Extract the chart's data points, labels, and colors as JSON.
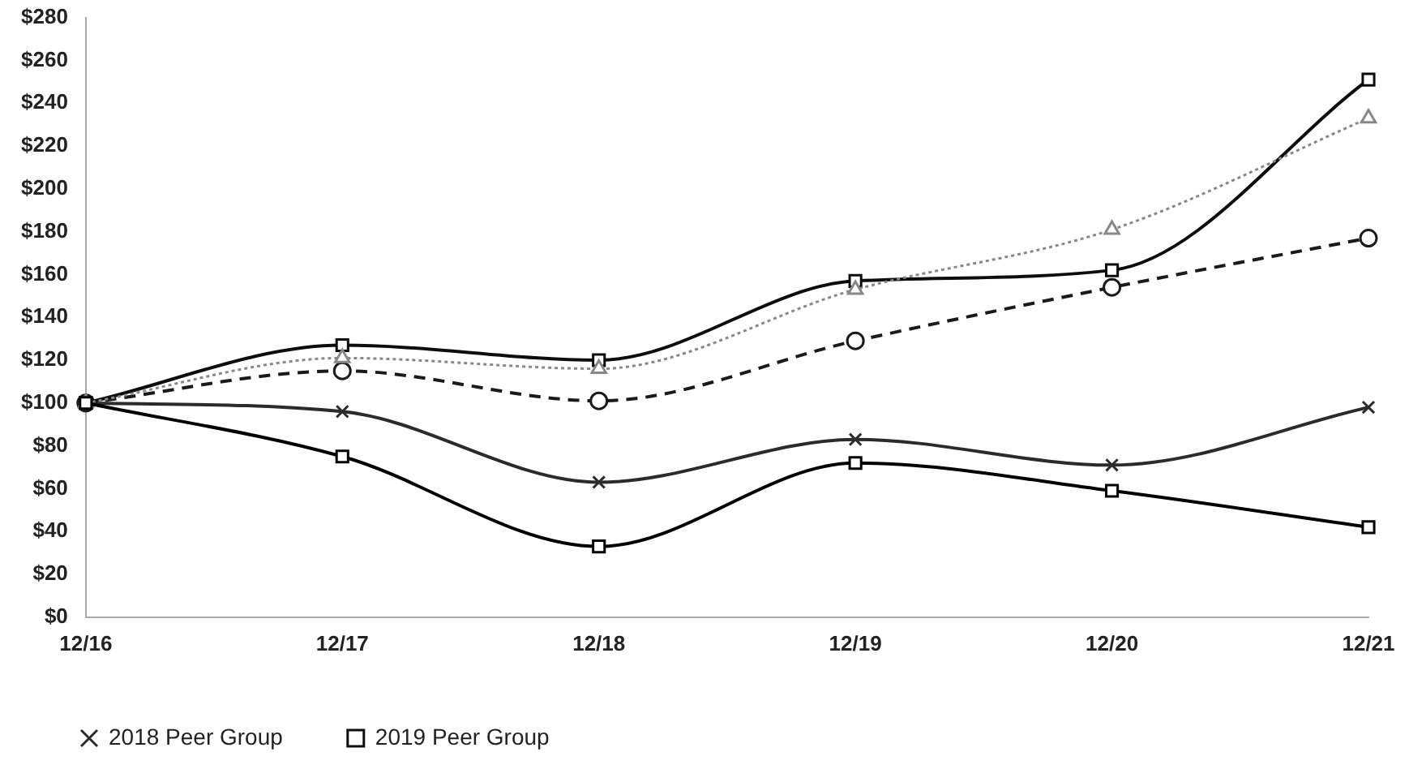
{
  "chart_data": {
    "type": "line",
    "categories": [
      "12/16",
      "12/17",
      "12/18",
      "12/19",
      "12/20",
      "12/21"
    ],
    "series": [
      {
        "color": "#000000",
        "values": [
          100,
          75,
          33,
          72,
          59,
          42
        ],
        "marker": "square",
        "line_style": "solid"
      },
      {
        "color": "#888888",
        "values": [
          100,
          121,
          116,
          153,
          181,
          233
        ],
        "marker": "triangle",
        "line_style": "dotted"
      },
      {
        "color": "#1a1a1a",
        "values": [
          100,
          115,
          101,
          129,
          154,
          177
        ],
        "marker": "circle",
        "line_style": "dashed"
      },
      {
        "name": "2018 Peer Group",
        "color": "#2b2b2b",
        "values": [
          100,
          96,
          63,
          83,
          71,
          98
        ],
        "marker": "cross",
        "line_style": "solid"
      },
      {
        "name": "2019 Peer Group",
        "color": "#0d0d0d",
        "values": [
          100,
          127,
          120,
          157,
          162,
          251
        ],
        "marker": "square",
        "line_style": "solid"
      }
    ],
    "ylim": [
      0,
      280
    ],
    "yticks": [
      {
        "value": 0,
        "label": "$0"
      },
      {
        "value": 20,
        "label": "$20"
      },
      {
        "value": 40,
        "label": "$40"
      },
      {
        "value": 60,
        "label": "$60"
      },
      {
        "value": 80,
        "label": "$80"
      },
      {
        "value": 100,
        "label": "$100"
      },
      {
        "value": 120,
        "label": "$120"
      },
      {
        "value": 140,
        "label": "$140"
      },
      {
        "value": 160,
        "label": "$160"
      },
      {
        "value": 180,
        "label": "$180"
      },
      {
        "value": 200,
        "label": "$200"
      },
      {
        "value": 220,
        "label": "$220"
      },
      {
        "value": 240,
        "label": "$240"
      },
      {
        "value": 260,
        "label": "$260"
      },
      {
        "value": 280,
        "label": "$280"
      }
    ],
    "grid": false,
    "legend": "bottom"
  }
}
